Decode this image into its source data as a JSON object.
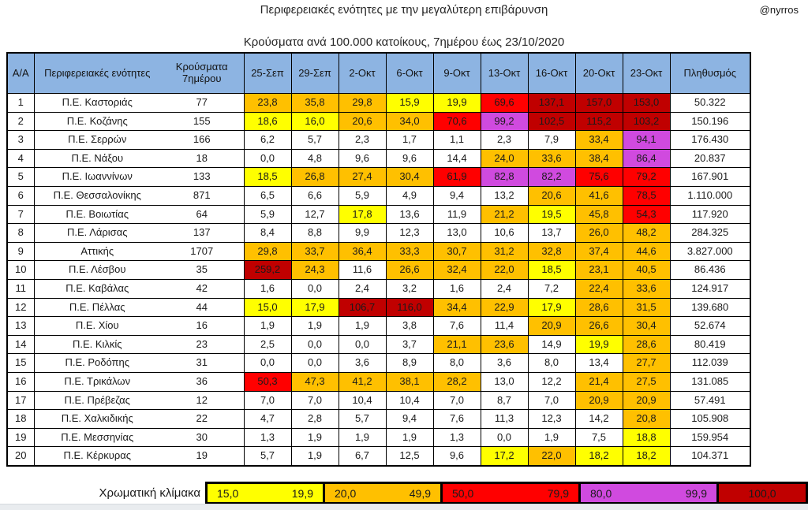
{
  "chart_data": {
    "type": "heatmap",
    "title": "Περιφερειακές ενότητες με την μεγαλύτερη επιβάρυνση",
    "credit": "@nyrros",
    "subtitle": "Κρούσματα ανά 100.000 κατοίκους, 7ημέρου έως  23/10/2020",
    "columns": [
      "Α/Α",
      "Περιφερειακές ενότητες",
      "Κρούσματα 7ημέρου",
      "25-Σεπ",
      "29-Σεπ",
      "2-Οκτ",
      "6-Οκτ",
      "9-Οκτ",
      "13-Οκτ",
      "16-Οκτ",
      "20-Οκτ",
      "23-Οκτ",
      "Πληθυσμός"
    ],
    "rows": [
      {
        "num": "1",
        "name": "Π.Ε. Καστοριάς",
        "cases": "77",
        "values": [
          "23,8",
          "35,8",
          "29,8",
          "15,9",
          "19,9",
          "69,6",
          "137,1",
          "157,0",
          "153,0"
        ],
        "population": "50.322"
      },
      {
        "num": "2",
        "name": "Π.Ε. Κοζάνης",
        "cases": "155",
        "values": [
          "18,6",
          "16,0",
          "20,6",
          "34,0",
          "70,6",
          "99,2",
          "102,5",
          "115,2",
          "103,2"
        ],
        "population": "150.196"
      },
      {
        "num": "3",
        "name": "Π.Ε. Σερρών",
        "cases": "166",
        "values": [
          "6,2",
          "5,7",
          "2,3",
          "1,7",
          "1,1",
          "2,3",
          "7,9",
          "33,4",
          "94,1"
        ],
        "population": "176.430"
      },
      {
        "num": "4",
        "name": "Π.Ε. Νάξου",
        "cases": "18",
        "values": [
          "0,0",
          "4,8",
          "9,6",
          "9,6",
          "14,4",
          "24,0",
          "33,6",
          "38,4",
          "86,4"
        ],
        "population": "20.837"
      },
      {
        "num": "5",
        "name": "Π.Ε. Ιωαννίνων",
        "cases": "133",
        "values": [
          "18,5",
          "26,8",
          "27,4",
          "30,4",
          "61,9",
          "82,8",
          "82,2",
          "75,6",
          "79,2"
        ],
        "population": "167.901"
      },
      {
        "num": "6",
        "name": "Π.Ε. Θεσσαλονίκης",
        "cases": "871",
        "values": [
          "6,5",
          "6,6",
          "5,9",
          "4,9",
          "9,4",
          "13,2",
          "20,6",
          "41,6",
          "78,5"
        ],
        "population": "1.110.000"
      },
      {
        "num": "7",
        "name": "Π.Ε. Βοιωτίας",
        "cases": "64",
        "values": [
          "5,9",
          "12,7",
          "17,8",
          "13,6",
          "11,9",
          "21,2",
          "19,5",
          "45,8",
          "54,3"
        ],
        "population": "117.920"
      },
      {
        "num": "8",
        "name": "Π.Ε. Λάρισας",
        "cases": "137",
        "values": [
          "8,4",
          "8,8",
          "9,9",
          "12,3",
          "13,0",
          "10,6",
          "13,7",
          "26,0",
          "48,2"
        ],
        "population": "284.325"
      },
      {
        "num": "9",
        "name": "Αττικής",
        "cases": "1707",
        "values": [
          "29,8",
          "33,7",
          "36,4",
          "33,3",
          "30,7",
          "31,2",
          "32,8",
          "37,4",
          "44,6"
        ],
        "population": "3.827.000"
      },
      {
        "num": "10",
        "name": "Π.Ε. Λέσβου",
        "cases": "35",
        "values": [
          "259,2",
          "24,3",
          "11,6",
          "26,6",
          "32,4",
          "22,0",
          "18,5",
          "23,1",
          "40,5"
        ],
        "population": "86.436"
      },
      {
        "num": "11",
        "name": "Π.Ε. Καβάλας",
        "cases": "42",
        "values": [
          "1,6",
          "0,0",
          "2,4",
          "3,2",
          "1,6",
          "2,4",
          "7,2",
          "22,4",
          "33,6"
        ],
        "population": "124.917"
      },
      {
        "num": "12",
        "name": "Π.Ε. Πέλλας",
        "cases": "44",
        "values": [
          "15,0",
          "17,9",
          "106,7",
          "116,0",
          "34,4",
          "22,9",
          "17,9",
          "28,6",
          "31,5"
        ],
        "population": "139.680"
      },
      {
        "num": "13",
        "name": "Π.Ε. Χίου",
        "cases": "16",
        "values": [
          "1,9",
          "1,9",
          "1,9",
          "3,8",
          "7,6",
          "11,4",
          "20,9",
          "26,6",
          "30,4"
        ],
        "population": "52.674"
      },
      {
        "num": "14",
        "name": "Π.Ε. Κιλκίς",
        "cases": "23",
        "values": [
          "2,5",
          "0,0",
          "0,0",
          "3,7",
          "21,1",
          "23,6",
          "14,9",
          "19,9",
          "28,6"
        ],
        "population": "80.419"
      },
      {
        "num": "15",
        "name": "Π.Ε. Ροδόπης",
        "cases": "31",
        "values": [
          "0,0",
          "0,0",
          "3,6",
          "8,9",
          "8,0",
          "3,6",
          "8,0",
          "13,4",
          "27,7"
        ],
        "population": "112.039"
      },
      {
        "num": "16",
        "name": "Π.Ε. Τρικάλων",
        "cases": "36",
        "values": [
          "50,3",
          "47,3",
          "41,2",
          "38,1",
          "28,2",
          "13,0",
          "12,2",
          "21,4",
          "27,5"
        ],
        "population": "131.085"
      },
      {
        "num": "17",
        "name": "Π.Ε. Πρέβεζας",
        "cases": "12",
        "values": [
          "7,0",
          "7,0",
          "10,4",
          "10,4",
          "7,0",
          "8,7",
          "7,0",
          "20,9",
          "20,9"
        ],
        "population": "57.491"
      },
      {
        "num": "18",
        "name": "Π.Ε. Χαλκιδικής",
        "cases": "22",
        "values": [
          "4,7",
          "2,8",
          "5,7",
          "9,4",
          "7,6",
          "11,3",
          "12,3",
          "14,2",
          "20,8"
        ],
        "population": "105.908"
      },
      {
        "num": "19",
        "name": "Π.Ε. Μεσσηνίας",
        "cases": "30",
        "values": [
          "1,3",
          "1,9",
          "1,9",
          "1,9",
          "1,3",
          "0,0",
          "1,9",
          "7,5",
          "18,8"
        ],
        "population": "159.954"
      },
      {
        "num": "20",
        "name": "Π.Ε. Κέρκυρας",
        "cases": "19",
        "values": [
          "5,7",
          "1,9",
          "6,7",
          "12,5",
          "9,6",
          "17,2",
          "22,0",
          "18,2",
          "18,2"
        ],
        "population": "104.371"
      }
    ],
    "color_scale": {
      "label": "Χρωματική κλίμακα",
      "bins": [
        {
          "from": 15.0,
          "to": 19.9,
          "label_min": "15,0",
          "label_max": "19,9",
          "color": "#FFFF00"
        },
        {
          "from": 20.0,
          "to": 49.9,
          "label_min": "20,0",
          "label_max": "49,9",
          "color": "#FFC000"
        },
        {
          "from": 50.0,
          "to": 79.9,
          "label_min": "50,0",
          "label_max": "79,9",
          "color": "#FF0000"
        },
        {
          "from": 80.0,
          "to": 99.9,
          "label_min": "80,0",
          "label_max": "99,9",
          "color": "#D04ADF"
        },
        {
          "from": 100.0,
          "to": null,
          "label_min": "100,0",
          "label_max": "",
          "color": "#C00000"
        }
      ]
    },
    "colors": {
      "header_bg": "#8DB4E2",
      "border": "#000000",
      "cell_default": "#FFFFFF",
      "yellow": "#FFFF00",
      "orange": "#FFC000",
      "red": "#FF0000",
      "magenta": "#D04ADF",
      "dark_red": "#C00000"
    }
  }
}
